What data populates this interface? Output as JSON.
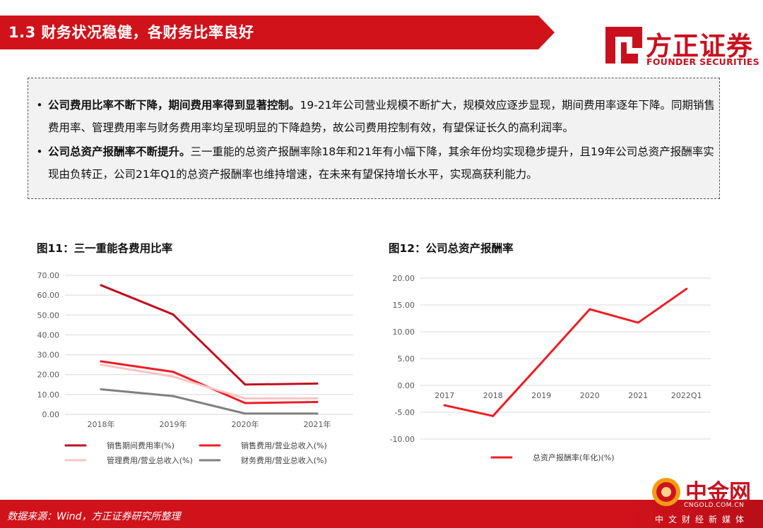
{
  "header": {
    "section_title": "1.3 财务状况稳健，各财务比率良好",
    "brand_color": "#d0121b"
  },
  "logo": {
    "name_cn": "方正证券",
    "name_en": "FOUNDER SECURITIES",
    "color": "#c8101e"
  },
  "summary": {
    "bullets": [
      {
        "bold": "公司费用比率不断下降，期间费用率得到显著控制。",
        "text": "19-21年公司营业规模不断扩大，规模效应逐步显现，期间费用率逐年下降。同期销售费用率、管理费用率与财务费用率均呈现明显的下降趋势，故公司费用控制有效，有望保证长久的高利润率。"
      },
      {
        "bold": "公司总资产报酬率不断提升。",
        "text": "三一重能的总资产报酬率除18年和21年有小幅下降，其余年份均实现稳步提升，且19年公司总资产报酬率实现由负转正，公司21年Q1的总资产报酬率也维持增速，在未来有望保持增长水平，实现高获利能力。"
      }
    ]
  },
  "chart_data": [
    {
      "type": "line",
      "title": "图11：三一重能各费用比率",
      "categories": [
        "2018年",
        "2019年",
        "2020年",
        "2021年"
      ],
      "ylim": [
        0,
        70
      ],
      "yticks": [
        "0.00",
        "10.00",
        "20.00",
        "30.00",
        "40.00",
        "50.00",
        "60.00",
        "70.00"
      ],
      "grid": true,
      "legend_position": "bottom",
      "series": [
        {
          "name": "销售期间费用率(%)",
          "color": "#c0101e",
          "values": [
            65.0,
            50.3,
            15.0,
            15.5
          ]
        },
        {
          "name": "销售费用/营业总收入(%)",
          "color": "#ee1c25",
          "values": [
            26.7,
            21.4,
            5.7,
            6.2
          ]
        },
        {
          "name": "管理费用/营业总收入(%)",
          "color": "#f7c5c3",
          "values": [
            25.0,
            19.0,
            8.0,
            8.1
          ]
        },
        {
          "name": "财务费用/营业总收入(%)",
          "color": "#808080",
          "values": [
            12.6,
            9.2,
            0.4,
            0.4
          ]
        }
      ]
    },
    {
      "type": "line",
      "title": "图12：公司总资产报酬率",
      "categories": [
        "2017",
        "2018",
        "2019",
        "2020",
        "2021",
        "2022Q1"
      ],
      "ylim": [
        -10,
        20
      ],
      "yticks": [
        "20.00",
        "15.00",
        "10.00",
        "5.00",
        "0.00",
        "-5.00",
        "-10.00"
      ],
      "grid": true,
      "legend_position": "bottom",
      "series": [
        {
          "name": "总资产报酬率(年化)(%)",
          "color": "#ee1c25",
          "values": [
            -3.7,
            -5.7,
            4.2,
            14.2,
            11.7,
            18.0
          ]
        }
      ]
    }
  ],
  "footer": {
    "source_note": "数据来源：Wind，方正证券研究所整理"
  },
  "watermark": {
    "brand_cn": "中金网",
    "url": "CNGOLD.COM.CN",
    "subtitle": "中文财经新媒体"
  }
}
